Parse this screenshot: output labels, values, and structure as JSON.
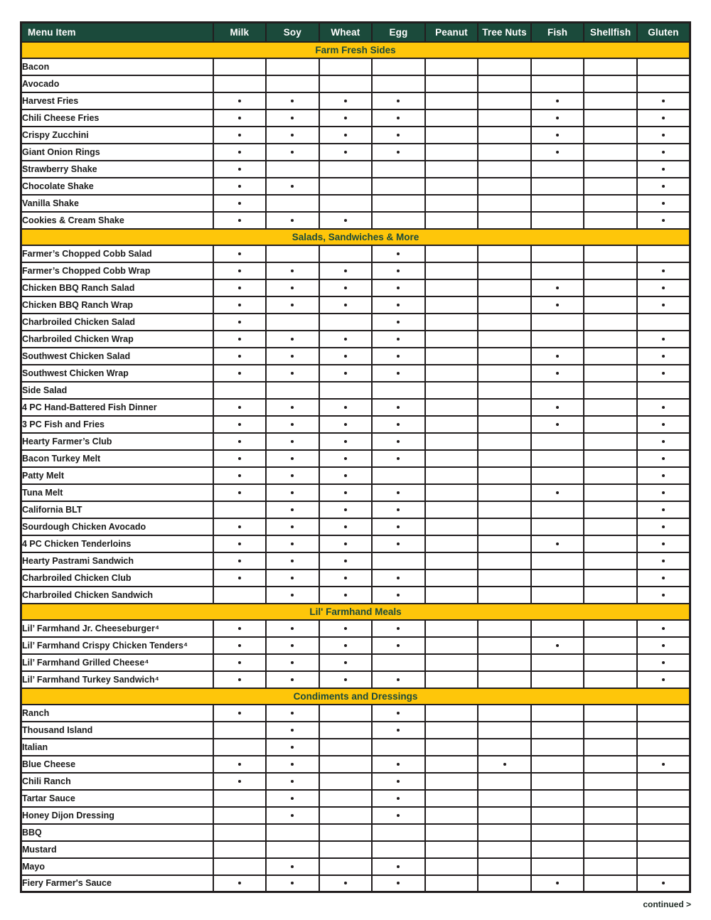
{
  "colors": {
    "green": "#1b4a3b",
    "yellow": "#fec60a",
    "border": "#221e1f"
  },
  "footer": {
    "continued_label": "continued >"
  },
  "table": {
    "columns": [
      "Menu Item",
      "Milk",
      "Soy",
      "Wheat",
      "Egg",
      "Peanut",
      "Tree Nuts",
      "Fish",
      "Shellfish",
      "Gluten"
    ],
    "sections": [
      {
        "title": "Farm Fresh Sides",
        "rows": [
          {
            "item": "Bacon",
            "marks": []
          },
          {
            "item": "Avocado",
            "marks": []
          },
          {
            "item": "Harvest Fries",
            "marks": [
              "Milk",
              "Soy",
              "Wheat",
              "Egg",
              "Fish",
              "Gluten"
            ]
          },
          {
            "item": "Chili Cheese Fries",
            "marks": [
              "Milk",
              "Soy",
              "Wheat",
              "Egg",
              "Fish",
              "Gluten"
            ]
          },
          {
            "item": "Crispy Zucchini",
            "marks": [
              "Milk",
              "Soy",
              "Wheat",
              "Egg",
              "Fish",
              "Gluten"
            ]
          },
          {
            "item": "Giant Onion Rings",
            "marks": [
              "Milk",
              "Soy",
              "Wheat",
              "Egg",
              "Fish",
              "Gluten"
            ]
          },
          {
            "item": "Strawberry Shake",
            "marks": [
              "Milk",
              "Gluten"
            ]
          },
          {
            "item": "Chocolate Shake",
            "marks": [
              "Milk",
              "Soy",
              "Gluten"
            ]
          },
          {
            "item": "Vanilla Shake",
            "marks": [
              "Milk",
              "Gluten"
            ]
          },
          {
            "item": "Cookies & Cream Shake",
            "marks": [
              "Milk",
              "Soy",
              "Wheat",
              "Gluten"
            ]
          }
        ]
      },
      {
        "title": "Salads, Sandwiches & More",
        "rows": [
          {
            "item": "Farmer’s Chopped Cobb Salad",
            "marks": [
              "Milk",
              "Egg"
            ]
          },
          {
            "item": "Farmer’s Chopped Cobb Wrap",
            "marks": [
              "Milk",
              "Soy",
              "Wheat",
              "Egg",
              "Gluten"
            ]
          },
          {
            "item": "Chicken BBQ Ranch Salad",
            "marks": [
              "Milk",
              "Soy",
              "Wheat",
              "Egg",
              "Fish",
              "Gluten"
            ]
          },
          {
            "item": "Chicken BBQ Ranch Wrap",
            "marks": [
              "Milk",
              "Soy",
              "Wheat",
              "Egg",
              "Fish",
              "Gluten"
            ]
          },
          {
            "item": "Charbroiled Chicken Salad",
            "marks": [
              "Milk",
              "Egg"
            ]
          },
          {
            "item": "Charbroiled Chicken Wrap",
            "marks": [
              "Milk",
              "Soy",
              "Wheat",
              "Egg",
              "Gluten"
            ]
          },
          {
            "item": "Southwest Chicken Salad",
            "marks": [
              "Milk",
              "Soy",
              "Wheat",
              "Egg",
              "Fish",
              "Gluten"
            ]
          },
          {
            "item": "Southwest Chicken Wrap",
            "marks": [
              "Milk",
              "Soy",
              "Wheat",
              "Egg",
              "Fish",
              "Gluten"
            ]
          },
          {
            "item": "Side Salad",
            "marks": []
          },
          {
            "item": "4 PC Hand-Battered Fish Dinner",
            "marks": [
              "Milk",
              "Soy",
              "Wheat",
              "Egg",
              "Fish",
              "Gluten"
            ]
          },
          {
            "item": "3 PC Fish and Fries",
            "marks": [
              "Milk",
              "Soy",
              "Wheat",
              "Egg",
              "Fish",
              "Gluten"
            ]
          },
          {
            "item": "Hearty Farmer’s Club",
            "marks": [
              "Milk",
              "Soy",
              "Wheat",
              "Egg",
              "Gluten"
            ]
          },
          {
            "item": "Bacon Turkey Melt",
            "marks": [
              "Milk",
              "Soy",
              "Wheat",
              "Egg",
              "Gluten"
            ]
          },
          {
            "item": "Patty Melt",
            "marks": [
              "Milk",
              "Soy",
              "Wheat",
              "Gluten"
            ]
          },
          {
            "item": "Tuna Melt",
            "marks": [
              "Milk",
              "Soy",
              "Wheat",
              "Egg",
              "Fish",
              "Gluten"
            ]
          },
          {
            "item": "California BLT",
            "marks": [
              "Soy",
              "Wheat",
              "Egg",
              "Gluten"
            ]
          },
          {
            "item": "Sourdough Chicken Avocado",
            "marks": [
              "Milk",
              "Soy",
              "Wheat",
              "Egg",
              "Gluten"
            ]
          },
          {
            "item": "4 PC Chicken Tenderloins",
            "marks": [
              "Milk",
              "Soy",
              "Wheat",
              "Egg",
              "Fish",
              "Gluten"
            ]
          },
          {
            "item": "Hearty Pastrami Sandwich",
            "marks": [
              "Milk",
              "Soy",
              "Wheat",
              "Gluten"
            ]
          },
          {
            "item": "Charbroiled Chicken Club",
            "marks": [
              "Milk",
              "Soy",
              "Wheat",
              "Egg",
              "Gluten"
            ]
          },
          {
            "item": "Charbroiled Chicken Sandwich",
            "marks": [
              "Soy",
              "Wheat",
              "Egg",
              "Gluten"
            ]
          }
        ]
      },
      {
        "title": "Lil' Farmhand Meals",
        "rows": [
          {
            "item": "Lil’ Farmhand Jr. Cheeseburger⁴",
            "marks": [
              "Milk",
              "Soy",
              "Wheat",
              "Egg",
              "Gluten"
            ]
          },
          {
            "item": "Lil’ Farmhand Crispy Chicken Tenders⁴",
            "marks": [
              "Milk",
              "Soy",
              "Wheat",
              "Egg",
              "Fish",
              "Gluten"
            ]
          },
          {
            "item": "Lil’ Farmhand Grilled Cheese⁴",
            "marks": [
              "Milk",
              "Soy",
              "Wheat",
              "Gluten"
            ]
          },
          {
            "item": "Lil’ Farmhand Turkey Sandwich⁴",
            "marks": [
              "Milk",
              "Soy",
              "Wheat",
              "Egg",
              "Gluten"
            ]
          }
        ]
      },
      {
        "title": "Condiments and Dressings",
        "rows": [
          {
            "item": "Ranch",
            "marks": [
              "Milk",
              "Soy",
              "Egg"
            ]
          },
          {
            "item": "Thousand Island",
            "marks": [
              "Soy",
              "Egg"
            ]
          },
          {
            "item": "Italian",
            "marks": [
              "Soy"
            ]
          },
          {
            "item": "Blue Cheese",
            "marks": [
              "Milk",
              "Soy",
              "Egg",
              "Tree Nuts",
              "Gluten"
            ]
          },
          {
            "item": "Chili Ranch",
            "marks": [
              "Milk",
              "Soy",
              "Egg"
            ]
          },
          {
            "item": "Tartar Sauce",
            "marks": [
              "Soy",
              "Egg"
            ]
          },
          {
            "item": "Honey Dijon Dressing",
            "marks": [
              "Soy",
              "Egg"
            ]
          },
          {
            "item": "BBQ",
            "marks": []
          },
          {
            "item": "Mustard",
            "marks": []
          },
          {
            "item": "Mayo",
            "marks": [
              "Soy",
              "Egg"
            ]
          },
          {
            "item": "Fiery Farmer's Sauce",
            "marks": [
              "Milk",
              "Soy",
              "Wheat",
              "Egg",
              "Fish",
              "Gluten"
            ]
          }
        ]
      }
    ]
  }
}
